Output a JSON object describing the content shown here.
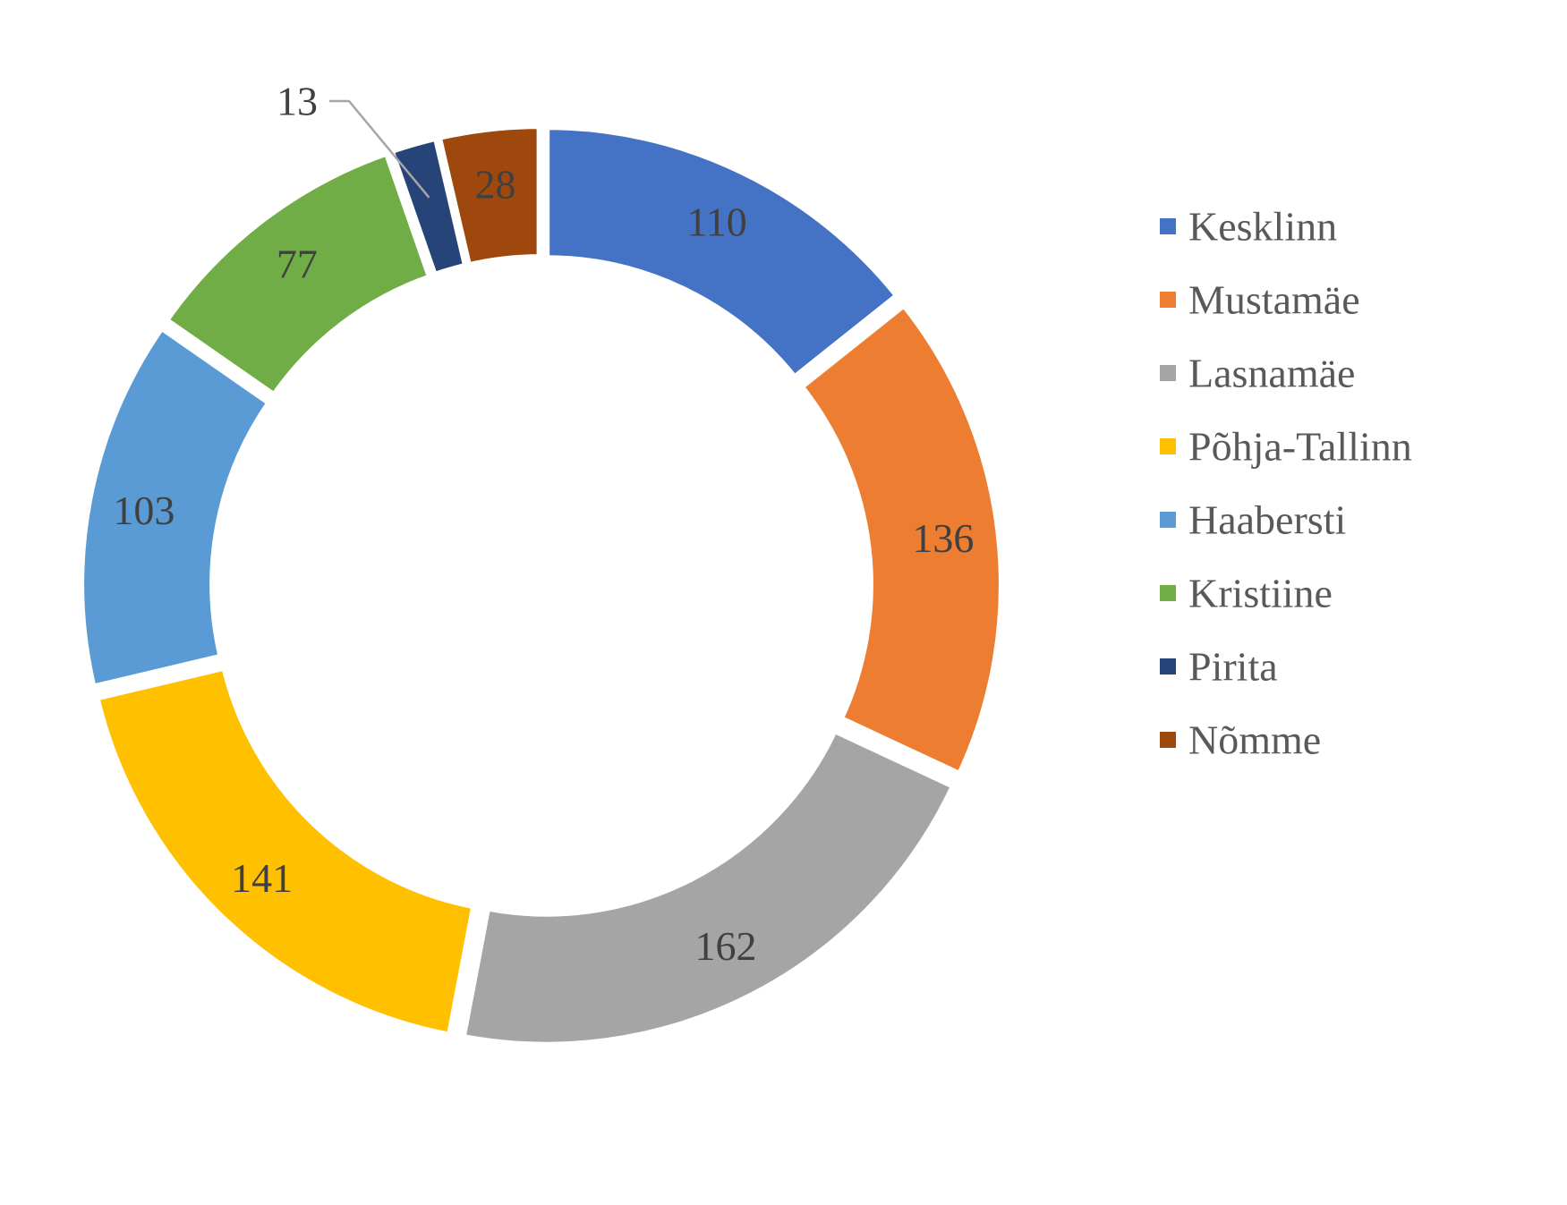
{
  "chart_data": {
    "type": "pie",
    "variant": "doughnut",
    "title": "",
    "legend_position": "right",
    "slices": [
      {
        "label": "Kesklinn",
        "value": 110,
        "color": "#4472C4"
      },
      {
        "label": "Mustamäe",
        "value": 136,
        "color": "#ED7D31"
      },
      {
        "label": "Lasnamäe",
        "value": 162,
        "color": "#A5A5A5"
      },
      {
        "label": "Põhja-Tallinn",
        "value": 141,
        "color": "#FFC000"
      },
      {
        "label": "Haabersti",
        "value": 103,
        "color": "#5B9BD5"
      },
      {
        "label": "Kristiine",
        "value": 77,
        "color": "#70AD47"
      },
      {
        "label": "Pirita",
        "value": 13,
        "color": "#264478"
      },
      {
        "label": "Nõmme",
        "value": 28,
        "color": "#9E480E"
      }
    ]
  }
}
